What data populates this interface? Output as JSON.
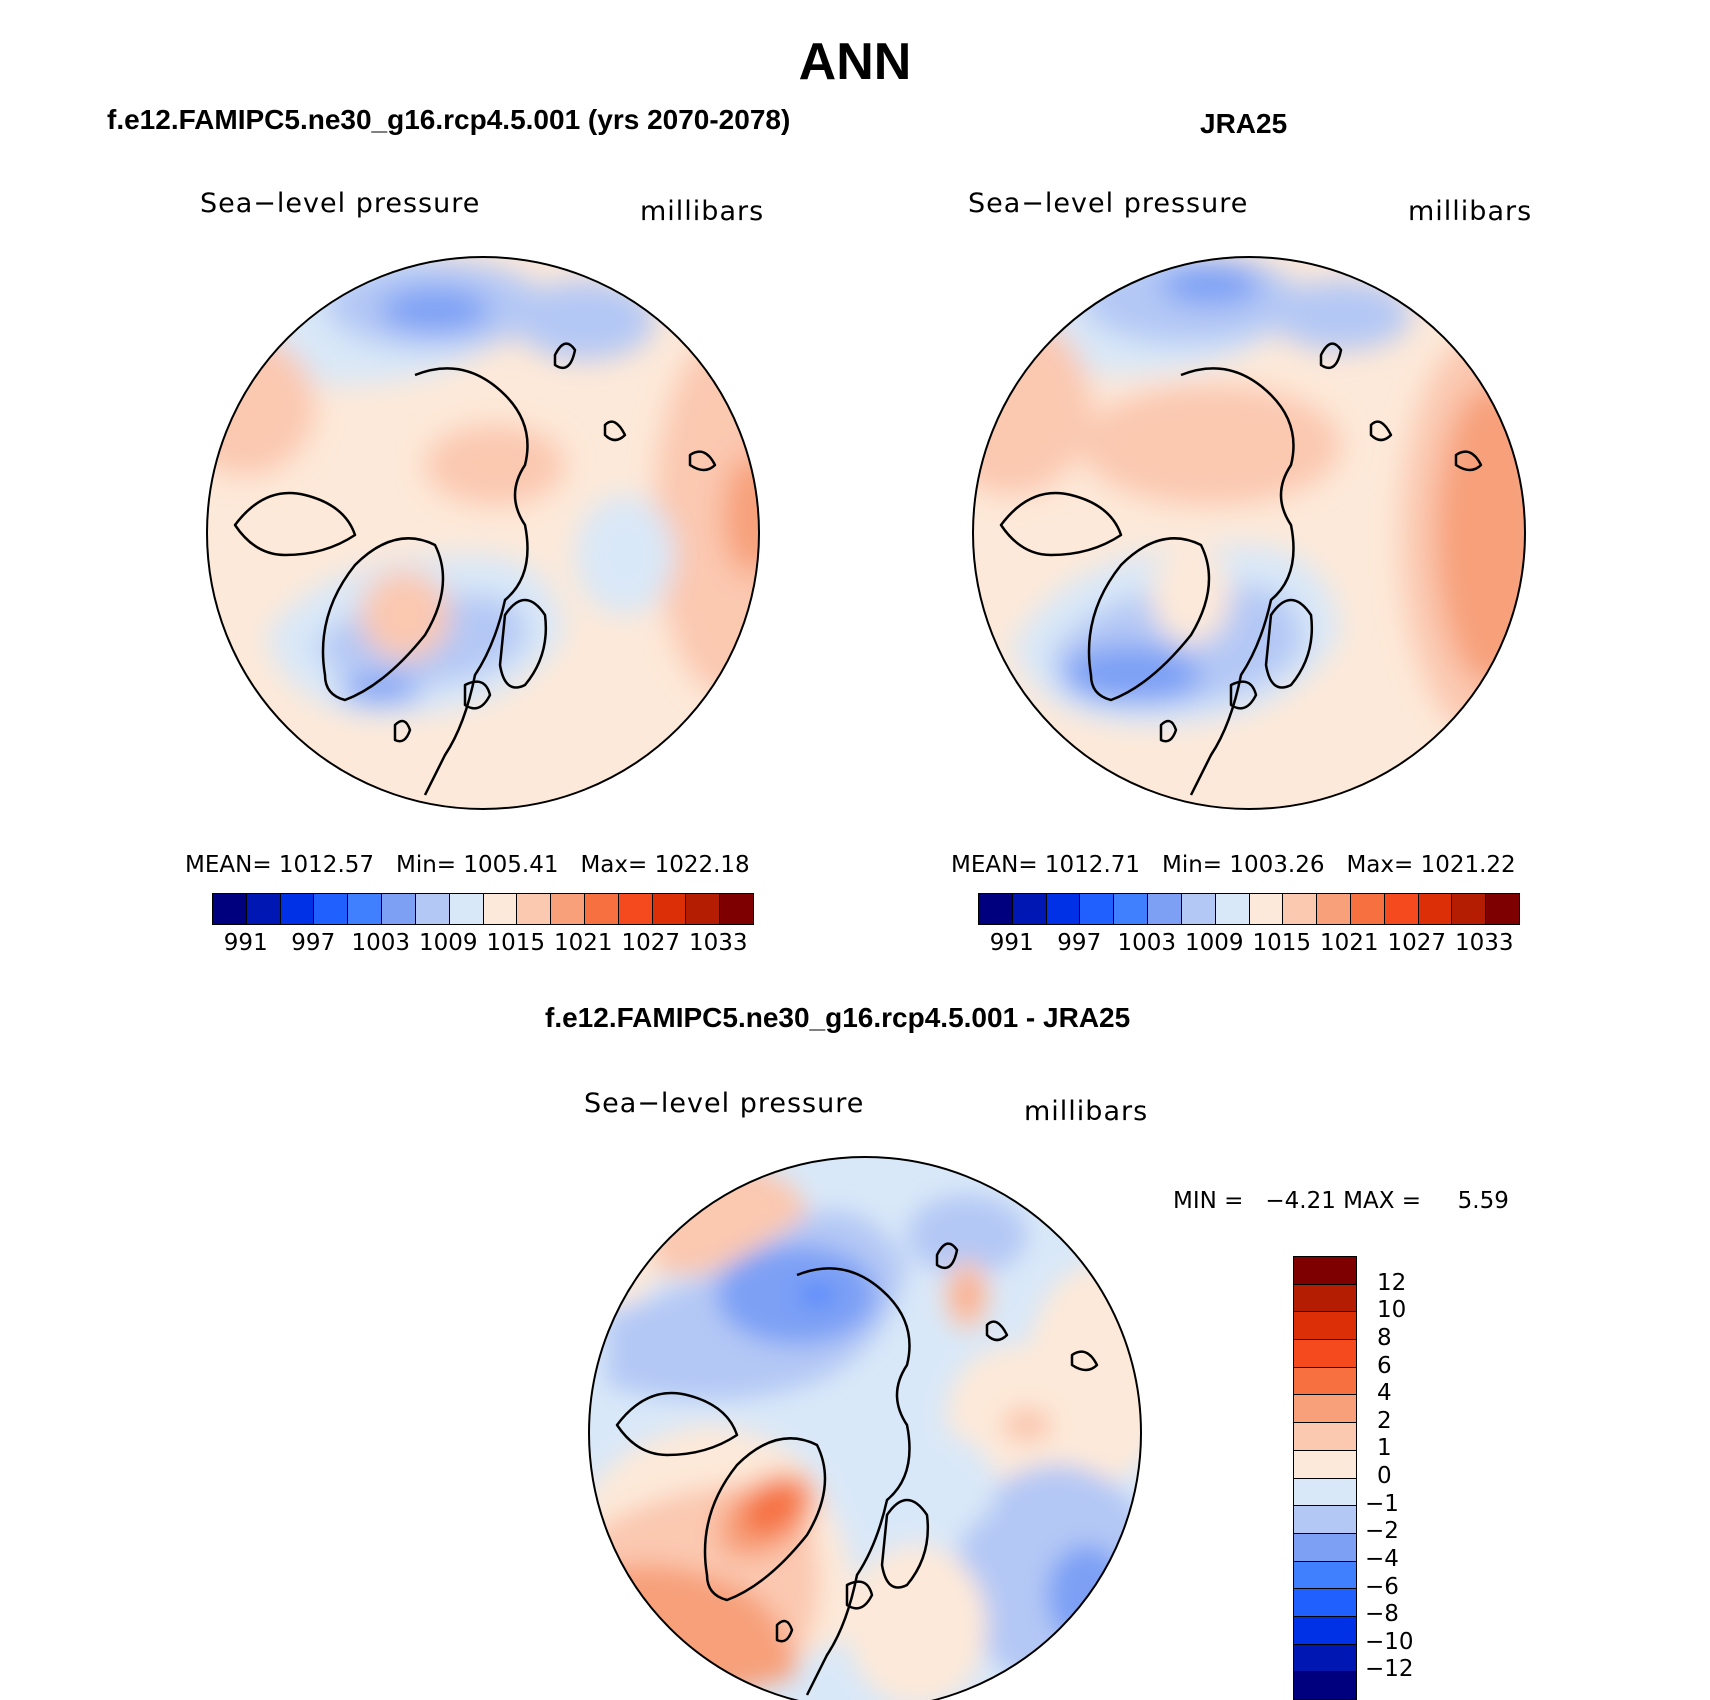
{
  "title": "ANN",
  "panels": [
    {
      "title": "f.e12.FAMIPC5.ne30_g16.rcp4.5.001 (yrs 2070-2078)",
      "variable": "Sea−level pressure",
      "units": "millibars",
      "stats": {
        "mean_label": "MEAN=",
        "mean": "1012.57",
        "min_label": "Min=",
        "min": "1005.41",
        "max_label": "Max=",
        "max": "1022.18"
      }
    },
    {
      "title": "JRA25",
      "variable": "Sea−level pressure",
      "units": "millibars",
      "stats": {
        "mean_label": "MEAN=",
        "mean": "1012.71",
        "min_label": "Min=",
        "min": "1003.26",
        "max_label": "Max=",
        "max": "1021.22"
      }
    },
    {
      "title": "f.e12.FAMIPC5.ne30_g16.rcp4.5.001 - JRA25",
      "variable": "Sea−level pressure",
      "units": "millibars",
      "stats": {
        "min_label": "MIN =",
        "min": "−4.21",
        "max_label": "MAX =",
        "max": "5.59"
      }
    }
  ],
  "colorbar_slp": {
    "levels": [
      "991",
      "997",
      "1003",
      "1009",
      "1015",
      "1021",
      "1027",
      "1033"
    ],
    "colors": [
      "#00007f",
      "#0017b4",
      "#0031e6",
      "#2060ff",
      "#4080ff",
      "#7da0f5",
      "#b4c8f5",
      "#d9e8f8",
      "#fde9d9",
      "#fbc8b0",
      "#f7a07a",
      "#f67040",
      "#f44a1d",
      "#dc2f07",
      "#b41d02",
      "#7f0000"
    ]
  },
  "colorbar_diff": {
    "levels": [
      "12",
      "10",
      "8",
      "6",
      "4",
      "2",
      "1",
      "0",
      "−1",
      "−2",
      "−4",
      "−6",
      "−8",
      "−10",
      "−12"
    ],
    "colors": [
      "#7f0000",
      "#b41d02",
      "#dc2f07",
      "#f44a1d",
      "#f67040",
      "#f7a07a",
      "#fbc8b0",
      "#fde9d9",
      "#d9e8f8",
      "#b4c8f5",
      "#7da0f5",
      "#4080ff",
      "#2060ff",
      "#0031e6",
      "#0017b4",
      "#00007f"
    ]
  },
  "chart_data": [
    {
      "type": "map",
      "projection": "north polar stereographic",
      "title": "f.e12.FAMIPC5.ne30_g16.rcp4.5.001 (yrs 2070-2078)",
      "variable": "Sea-level pressure",
      "units": "millibars",
      "mean": 1012.57,
      "min": 1005.41,
      "max": 1022.18,
      "contour_levels": [
        991,
        994,
        997,
        1000,
        1003,
        1006,
        1009,
        1012,
        1015,
        1018,
        1021,
        1024,
        1027,
        1030,
        1033
      ]
    },
    {
      "type": "map",
      "projection": "north polar stereographic",
      "title": "JRA25",
      "variable": "Sea-level pressure",
      "units": "millibars",
      "mean": 1012.71,
      "min": 1003.26,
      "max": 1021.22,
      "contour_levels": [
        991,
        994,
        997,
        1000,
        1003,
        1006,
        1009,
        1012,
        1015,
        1018,
        1021,
        1024,
        1027,
        1030,
        1033
      ]
    },
    {
      "type": "map",
      "projection": "north polar stereographic",
      "title": "f.e12.FAMIPC5.ne30_g16.rcp4.5.001 - JRA25",
      "variable": "Sea-level pressure",
      "units": "millibars",
      "min": -4.21,
      "max": 5.59,
      "contour_levels": [
        -12,
        -10,
        -8,
        -6,
        -4,
        -2,
        -1,
        0,
        1,
        2,
        4,
        6,
        8,
        10,
        12
      ]
    }
  ]
}
